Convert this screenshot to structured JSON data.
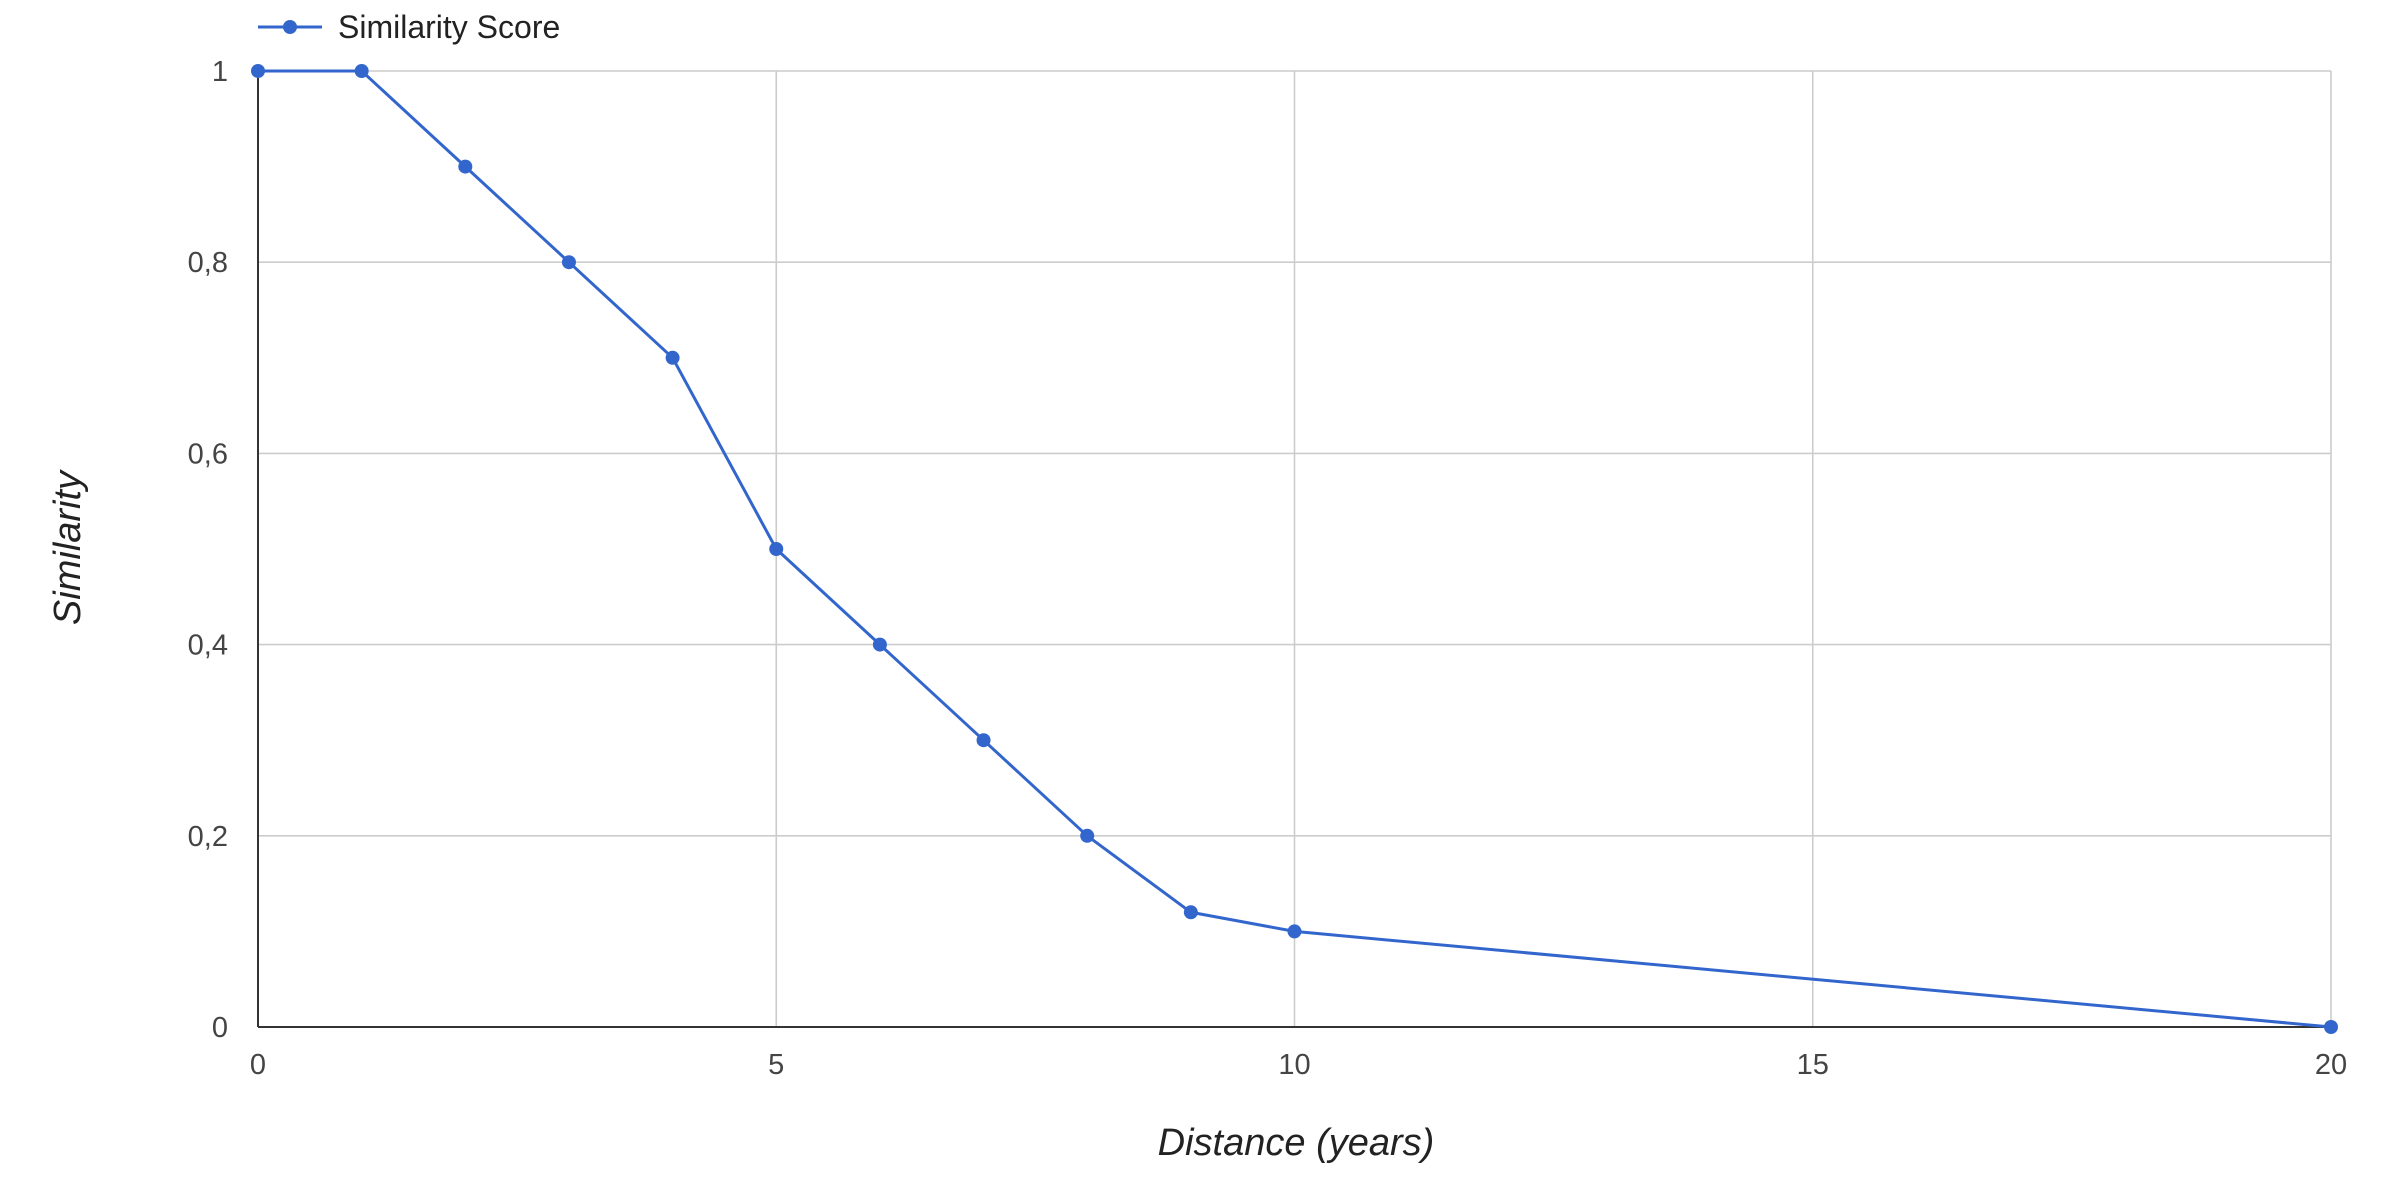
{
  "chart_data": {
    "type": "line",
    "title": "",
    "xlabel": "Distance (years)",
    "ylabel": "Similarity",
    "xlim": [
      0,
      20
    ],
    "ylim": [
      0,
      1
    ],
    "xticks": [
      0,
      5,
      10,
      15,
      20
    ],
    "yticks": [
      0,
      0.2,
      0.4,
      0.6,
      0.8,
      1
    ],
    "ytick_labels": [
      "0",
      "0,2",
      "0,4",
      "0,6",
      "0,8",
      "1"
    ],
    "xtick_labels": [
      "0",
      "5",
      "10",
      "15",
      "20"
    ],
    "grid": true,
    "legend_position": "top-left",
    "series": [
      {
        "name": "Similarity Score",
        "color": "#3366cc",
        "x": [
          0,
          1,
          2,
          3,
          4,
          5,
          6,
          7,
          8,
          9,
          10,
          20
        ],
        "y": [
          1,
          1,
          0.9,
          0.8,
          0.7,
          0.5,
          0.4,
          0.3,
          0.2,
          0.12,
          0.1,
          0
        ]
      }
    ]
  }
}
